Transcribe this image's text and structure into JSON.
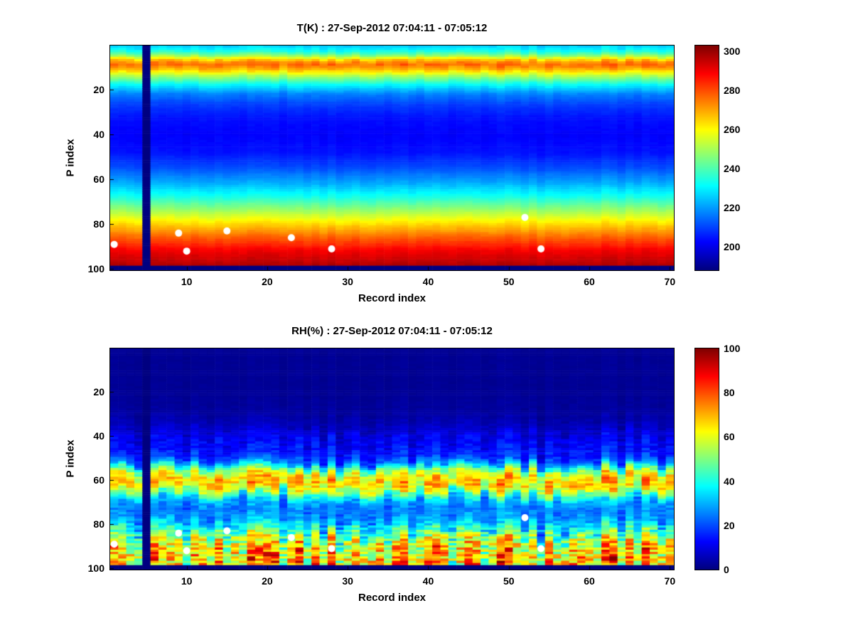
{
  "figure": {
    "background": "#ffffff"
  },
  "chart_data": [
    {
      "type": "heatmap",
      "title": "T(K) : 27-Sep-2012 07:04:11 - 07:05:12",
      "xlabel": "Record index",
      "ylabel": "P index",
      "colormap": "jet",
      "x_range": [
        0.5,
        70.5
      ],
      "y_range": [
        0.5,
        100.5
      ],
      "x_ticks": [
        10,
        20,
        30,
        40,
        50,
        60,
        70
      ],
      "y_ticks": [
        20,
        40,
        60,
        80,
        100
      ],
      "colorbar_ticks": [
        200,
        220,
        240,
        260,
        280,
        300
      ],
      "clim": [
        188,
        303
      ],
      "n_records": 70,
      "n_levels": 100,
      "missing_record": 5,
      "missing_bottom_rows": 2,
      "column_jitter": 0.5,
      "profile_p": [
        1,
        3,
        5,
        7,
        9,
        11,
        14,
        18,
        22,
        27,
        33,
        40,
        48,
        55,
        62,
        68,
        74,
        80,
        86,
        92,
        98,
        100
      ],
      "profile_v": [
        226,
        233,
        247,
        267,
        277,
        269,
        251,
        231,
        217,
        209,
        204,
        202,
        204,
        211,
        222,
        234,
        249,
        264,
        278,
        290,
        297,
        299
      ],
      "profile_noise": [
        3,
        3,
        3,
        5,
        5,
        4,
        3,
        2,
        2,
        1.5,
        1.5,
        1.5,
        1.5,
        1.5,
        2,
        2,
        2,
        2,
        2,
        2,
        2,
        2
      ],
      "markers": {
        "color": "#ffffff",
        "records": [
          1,
          9,
          10,
          15,
          23,
          28,
          52,
          54
        ],
        "p": [
          89,
          84,
          92,
          83,
          86,
          91,
          77,
          91
        ]
      }
    },
    {
      "type": "heatmap",
      "title": "RH(%) : 27-Sep-2012 07:04:11 - 07:05:12",
      "xlabel": "Record index",
      "ylabel": "P index",
      "colormap": "jet",
      "x_range": [
        0.5,
        70.5
      ],
      "y_range": [
        0.5,
        100.5
      ],
      "x_ticks": [
        10,
        20,
        30,
        40,
        50,
        60,
        70
      ],
      "y_ticks": [
        20,
        40,
        60,
        80,
        100
      ],
      "colorbar_ticks": [
        0,
        20,
        40,
        60,
        80,
        100
      ],
      "clim": [
        0,
        100
      ],
      "n_records": 70,
      "n_levels": 100,
      "missing_record": 5,
      "missing_bottom_rows": 2,
      "column_jitter": 2.5,
      "profile_p": [
        1,
        20,
        30,
        36,
        40,
        44,
        48,
        52,
        55,
        58,
        61,
        64,
        67,
        70,
        74,
        78,
        82,
        86,
        90,
        94,
        98,
        100
      ],
      "profile_v": [
        2,
        2,
        3,
        6,
        10,
        12,
        14,
        22,
        45,
        62,
        68,
        60,
        42,
        28,
        24,
        28,
        38,
        52,
        62,
        66,
        68,
        62
      ],
      "profile_noise": [
        1,
        1,
        2,
        4,
        7,
        8,
        8,
        10,
        15,
        18,
        18,
        18,
        14,
        10,
        8,
        12,
        22,
        32,
        36,
        36,
        36,
        30
      ],
      "markers": {
        "color": "#ffffff",
        "records": [
          1,
          9,
          10,
          15,
          23,
          28,
          52,
          54
        ],
        "p": [
          89,
          84,
          92,
          83,
          86,
          91,
          77,
          91
        ]
      }
    }
  ]
}
